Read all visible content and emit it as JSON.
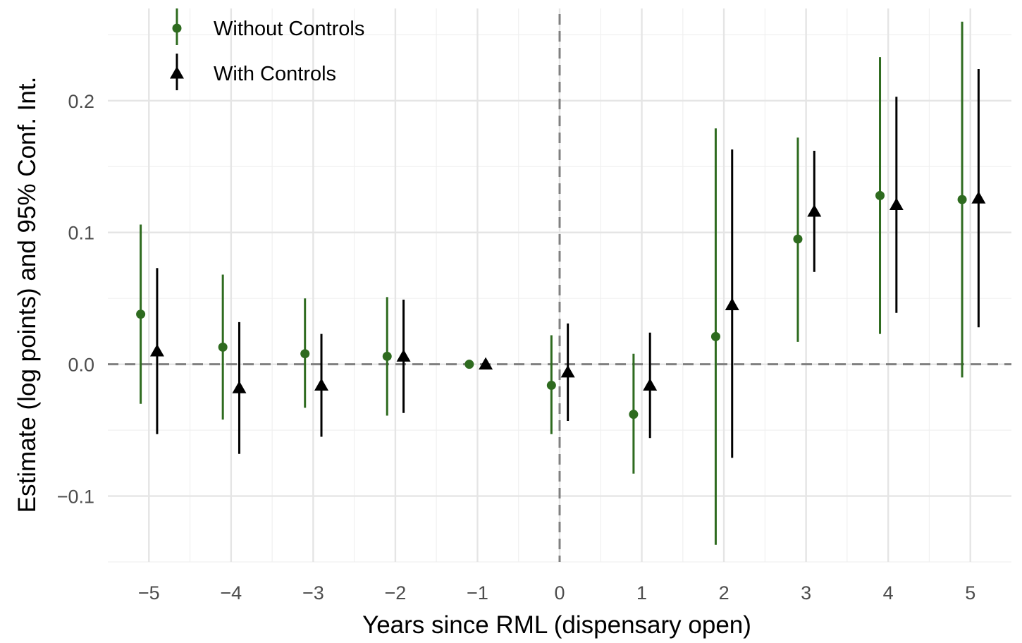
{
  "chart_data": {
    "type": "scatter",
    "title": "",
    "xlabel": "Years since RML (dispensary open)",
    "ylabel": "Estimate (log points) and 95% Conf. Int.",
    "x_ticks": [
      -5,
      -4,
      -3,
      -2,
      -1,
      0,
      1,
      2,
      3,
      4,
      5
    ],
    "x_tick_labels": [
      "−5",
      "−4",
      "−3",
      "−2",
      "−1",
      "0",
      "1",
      "2",
      "3",
      "4",
      "5"
    ],
    "y_ticks": [
      -0.1,
      0.0,
      0.1,
      0.2
    ],
    "y_tick_labels": [
      "−0.1",
      "0.0",
      "0.1",
      "0.2"
    ],
    "xlim": [
      -5.5,
      5.5
    ],
    "ylim": [
      -0.15,
      0.27
    ],
    "grid": true,
    "reference_lines": {
      "x": 0,
      "y": 0,
      "style": "dashed"
    },
    "legend_position": "top-left",
    "series": [
      {
        "name": "Without Controls",
        "marker": "circle",
        "color": "#2e6b1f",
        "x_offset": -0.1,
        "points": [
          {
            "x": -5,
            "y": 0.038,
            "lo": -0.03,
            "hi": 0.106
          },
          {
            "x": -4,
            "y": 0.013,
            "lo": -0.042,
            "hi": 0.068
          },
          {
            "x": -3,
            "y": 0.008,
            "lo": -0.033,
            "hi": 0.05
          },
          {
            "x": -2,
            "y": 0.006,
            "lo": -0.039,
            "hi": 0.051
          },
          {
            "x": -1,
            "y": 0.0,
            "lo": 0.0,
            "hi": 0.0
          },
          {
            "x": 0,
            "y": -0.016,
            "lo": -0.053,
            "hi": 0.022
          },
          {
            "x": 1,
            "y": -0.038,
            "lo": -0.083,
            "hi": 0.008
          },
          {
            "x": 2,
            "y": 0.021,
            "lo": -0.137,
            "hi": 0.179
          },
          {
            "x": 3,
            "y": 0.095,
            "lo": 0.017,
            "hi": 0.172
          },
          {
            "x": 4,
            "y": 0.128,
            "lo": 0.023,
            "hi": 0.233
          },
          {
            "x": 5,
            "y": 0.125,
            "lo": -0.01,
            "hi": 0.26
          }
        ]
      },
      {
        "name": "With Controls",
        "marker": "triangle",
        "color": "#000000",
        "x_offset": 0.1,
        "points": [
          {
            "x": -5,
            "y": 0.01,
            "lo": -0.053,
            "hi": 0.073
          },
          {
            "x": -4,
            "y": -0.018,
            "lo": -0.068,
            "hi": 0.032
          },
          {
            "x": -3,
            "y": -0.016,
            "lo": -0.055,
            "hi": 0.023
          },
          {
            "x": -2,
            "y": 0.006,
            "lo": -0.037,
            "hi": 0.049
          },
          {
            "x": -1,
            "y": 0.0,
            "lo": 0.0,
            "hi": 0.0
          },
          {
            "x": 0,
            "y": -0.006,
            "lo": -0.043,
            "hi": 0.031
          },
          {
            "x": 1,
            "y": -0.016,
            "lo": -0.056,
            "hi": 0.024
          },
          {
            "x": 2,
            "y": 0.045,
            "lo": -0.071,
            "hi": 0.163
          },
          {
            "x": 3,
            "y": 0.116,
            "lo": 0.07,
            "hi": 0.162
          },
          {
            "x": 4,
            "y": 0.121,
            "lo": 0.039,
            "hi": 0.203
          },
          {
            "x": 5,
            "y": 0.126,
            "lo": 0.028,
            "hi": 0.224
          }
        ]
      }
    ]
  }
}
